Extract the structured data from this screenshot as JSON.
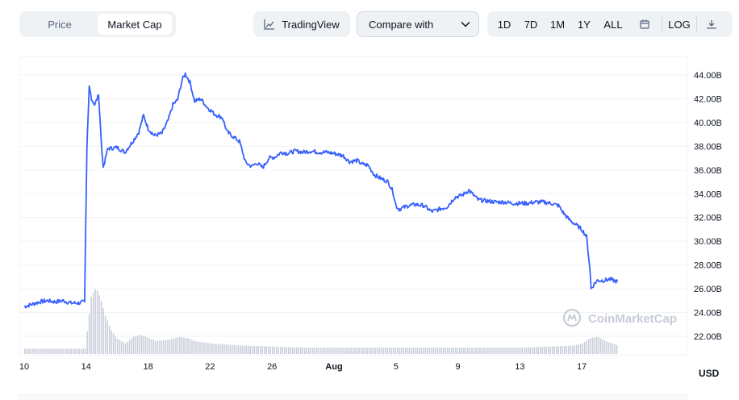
{
  "tabs": {
    "price": "Price",
    "market_cap": "Market Cap",
    "active": "market_cap"
  },
  "toolbar": {
    "tradingview_label": "TradingView",
    "compare_label": "Compare with",
    "ranges": [
      "1D",
      "7D",
      "1M",
      "1Y",
      "ALL"
    ],
    "log_label": "LOG"
  },
  "icons": {
    "tradingview": "line-chart-icon",
    "compare": "chevron-down-icon",
    "calendar": "calendar-icon",
    "download": "download-icon"
  },
  "colors": {
    "line": "#3861fb",
    "volume": "#c7ccd9",
    "grid": "#eff2f5",
    "axis_text": "#58667e"
  },
  "watermark": "CoinMarketCap",
  "chart_data": {
    "type": "line",
    "x_unit_note": "",
    "y_unit": "USD",
    "ylim": [
      20.5,
      45.5
    ],
    "y_ticks": [
      "22.00B",
      "24.00B",
      "26.00B",
      "28.00B",
      "30.00B",
      "32.00B",
      "34.00B",
      "36.00B",
      "38.00B",
      "40.00B",
      "42.00B",
      "44.00B"
    ],
    "y_tick_values": [
      22,
      24,
      26,
      28,
      30,
      32,
      34,
      36,
      38,
      40,
      42,
      44
    ],
    "x_ticks": [
      "10",
      "14",
      "18",
      "22",
      "26",
      "Aug",
      "5",
      "9",
      "13",
      "17"
    ],
    "x_tick_days": [
      0,
      4,
      8,
      12,
      16,
      20,
      24,
      28,
      32,
      36
    ],
    "series": [
      {
        "values_billions_by_day": [
          [
            0.0,
            24.5
          ],
          [
            0.5,
            24.7
          ],
          [
            1.0,
            24.9
          ],
          [
            1.5,
            25.0
          ],
          [
            2.0,
            24.9
          ],
          [
            2.5,
            25.0
          ],
          [
            3.0,
            24.8
          ],
          [
            3.5,
            24.8
          ],
          [
            3.9,
            24.9
          ],
          [
            4.05,
            38.0
          ],
          [
            4.2,
            43.0
          ],
          [
            4.35,
            42.0
          ],
          [
            4.55,
            41.5
          ],
          [
            4.8,
            42.3
          ],
          [
            5.0,
            38.0
          ],
          [
            5.1,
            36.2
          ],
          [
            5.4,
            37.8
          ],
          [
            6.0,
            37.9
          ],
          [
            6.5,
            37.5
          ],
          [
            7.0,
            38.4
          ],
          [
            7.4,
            39.2
          ],
          [
            7.7,
            40.6
          ],
          [
            8.0,
            39.5
          ],
          [
            8.4,
            38.9
          ],
          [
            8.9,
            39.1
          ],
          [
            9.3,
            40.2
          ],
          [
            9.6,
            41.5
          ],
          [
            9.9,
            41.9
          ],
          [
            10.2,
            43.6
          ],
          [
            10.4,
            44.1
          ],
          [
            10.7,
            43.4
          ],
          [
            11.0,
            41.8
          ],
          [
            11.4,
            42.0
          ],
          [
            11.8,
            41.3
          ],
          [
            12.3,
            40.7
          ],
          [
            12.8,
            40.4
          ],
          [
            13.1,
            39.2
          ],
          [
            13.5,
            38.8
          ],
          [
            13.9,
            38.4
          ],
          [
            14.3,
            36.6
          ],
          [
            14.7,
            36.3
          ],
          [
            15.0,
            36.6
          ],
          [
            15.4,
            36.2
          ],
          [
            15.8,
            37.0
          ],
          [
            16.2,
            37.1
          ],
          [
            16.6,
            37.5
          ],
          [
            17.0,
            37.4
          ],
          [
            17.5,
            37.6
          ],
          [
            18.0,
            37.5
          ],
          [
            18.5,
            37.6
          ],
          [
            19.0,
            37.5
          ],
          [
            19.5,
            37.5
          ],
          [
            20.0,
            37.4
          ],
          [
            20.6,
            37.2
          ],
          [
            21.0,
            36.7
          ],
          [
            21.5,
            36.8
          ],
          [
            21.8,
            36.5
          ],
          [
            22.2,
            36.4
          ],
          [
            22.6,
            35.6
          ],
          [
            23.0,
            35.3
          ],
          [
            23.5,
            35.0
          ],
          [
            23.8,
            34.2
          ],
          [
            24.0,
            33.0
          ],
          [
            24.2,
            32.7
          ],
          [
            24.8,
            33.0
          ],
          [
            25.3,
            33.1
          ],
          [
            25.8,
            33.0
          ],
          [
            26.3,
            32.5
          ],
          [
            26.8,
            32.7
          ],
          [
            27.3,
            32.9
          ],
          [
            27.8,
            33.7
          ],
          [
            28.3,
            33.9
          ],
          [
            28.7,
            34.3
          ],
          [
            29.0,
            33.9
          ],
          [
            29.3,
            33.5
          ],
          [
            29.8,
            33.4
          ],
          [
            30.5,
            33.3
          ],
          [
            31.0,
            33.3
          ],
          [
            31.5,
            33.2
          ],
          [
            32.0,
            33.2
          ],
          [
            32.5,
            33.2
          ],
          [
            33.0,
            33.3
          ],
          [
            33.5,
            33.3
          ],
          [
            34.0,
            33.2
          ],
          [
            34.5,
            33.0
          ],
          [
            34.8,
            32.4
          ],
          [
            35.2,
            31.8
          ],
          [
            35.6,
            31.4
          ],
          [
            36.0,
            31.0
          ],
          [
            36.3,
            30.4
          ],
          [
            36.5,
            28.0
          ],
          [
            36.6,
            26.0
          ],
          [
            36.8,
            26.4
          ],
          [
            37.0,
            26.7
          ],
          [
            37.4,
            26.7
          ],
          [
            37.8,
            26.8
          ],
          [
            38.3,
            26.6
          ]
        ]
      }
    ],
    "volume_by_day": [
      [
        0.0,
        0.05
      ],
      [
        2.0,
        0.05
      ],
      [
        3.9,
        0.05
      ],
      [
        4.1,
        0.3
      ],
      [
        4.3,
        0.55
      ],
      [
        4.6,
        0.62
      ],
      [
        4.9,
        0.52
      ],
      [
        5.2,
        0.36
      ],
      [
        5.6,
        0.22
      ],
      [
        6.0,
        0.14
      ],
      [
        6.5,
        0.1
      ],
      [
        7.0,
        0.16
      ],
      [
        7.5,
        0.18
      ],
      [
        8.0,
        0.15
      ],
      [
        8.5,
        0.12
      ],
      [
        9.0,
        0.13
      ],
      [
        9.5,
        0.14
      ],
      [
        10.0,
        0.16
      ],
      [
        10.5,
        0.15
      ],
      [
        11.0,
        0.12
      ],
      [
        12.0,
        0.1
      ],
      [
        13.0,
        0.09
      ],
      [
        14.0,
        0.08
      ],
      [
        16.0,
        0.07
      ],
      [
        18.0,
        0.06
      ],
      [
        20.0,
        0.06
      ],
      [
        24.0,
        0.06
      ],
      [
        28.0,
        0.06
      ],
      [
        32.0,
        0.06
      ],
      [
        34.0,
        0.07
      ],
      [
        35.5,
        0.08
      ],
      [
        36.0,
        0.1
      ],
      [
        36.5,
        0.15
      ],
      [
        37.0,
        0.16
      ],
      [
        37.5,
        0.12
      ],
      [
        38.3,
        0.08
      ]
    ]
  }
}
